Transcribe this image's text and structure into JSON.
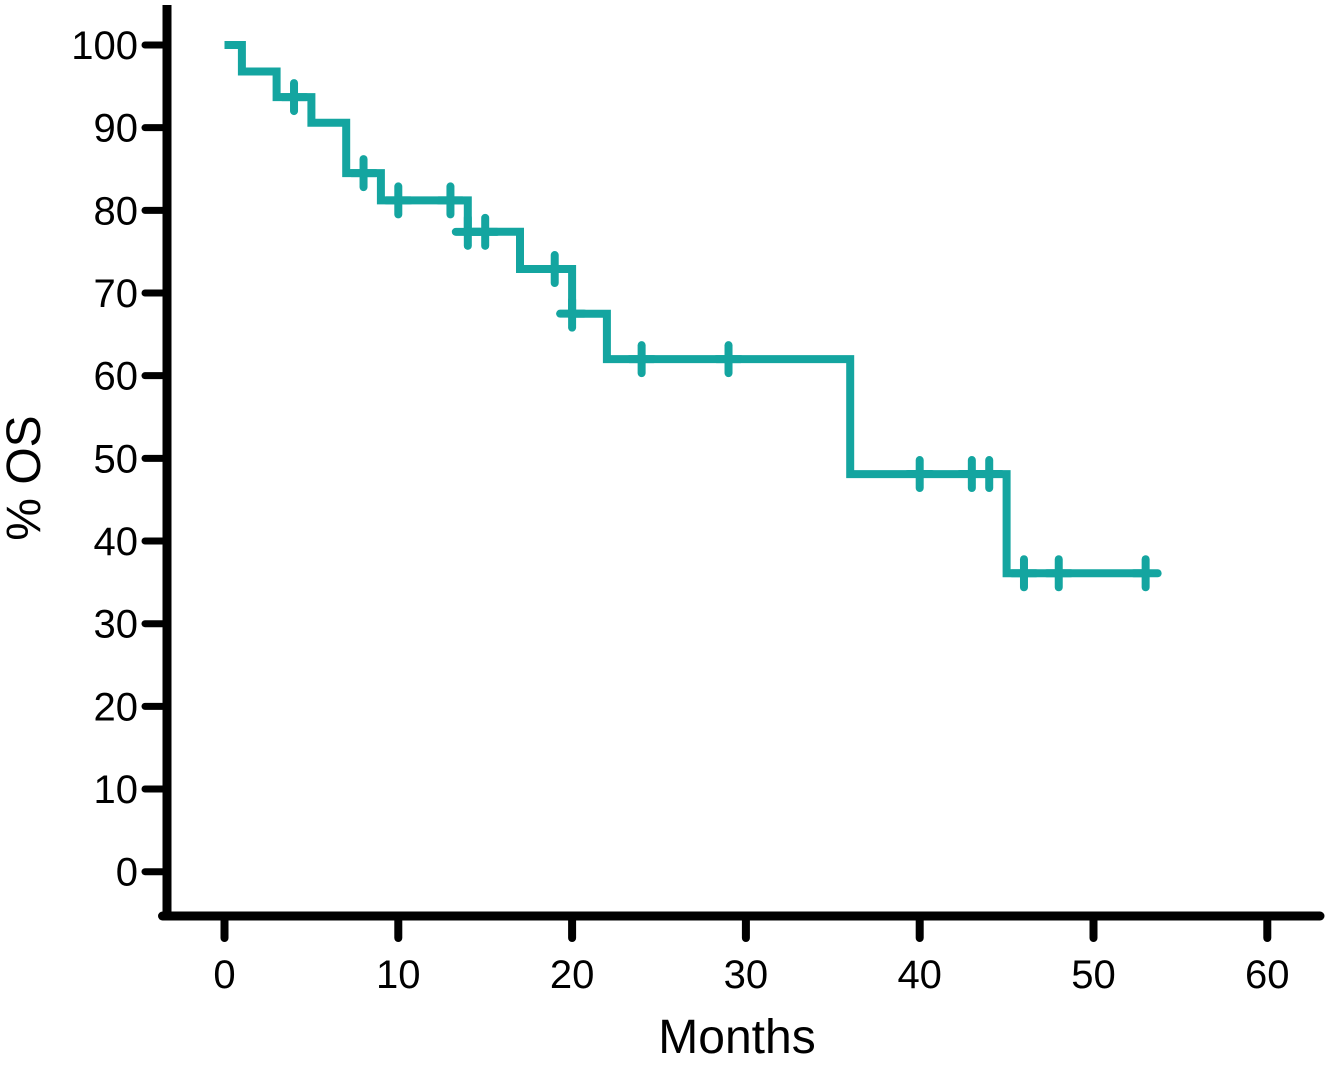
{
  "chart_data": {
    "type": "line",
    "chart_kind": "kaplan-meier-survival-step-curve",
    "title": "",
    "xlabel": "Months",
    "ylabel": "% OS",
    "xlim": [
      0,
      60
    ],
    "ylim": [
      0,
      100
    ],
    "x_ticks": [
      0,
      10,
      20,
      30,
      40,
      50,
      60
    ],
    "y_ticks": [
      0,
      10,
      20,
      30,
      40,
      50,
      60,
      70,
      80,
      90,
      100
    ],
    "grid": false,
    "legend_position": "none",
    "colors": {
      "curve": "#14A5A0",
      "axis": "#000000",
      "text": "#000000",
      "background": "#FFFFFF"
    },
    "series": [
      {
        "name": "% OS",
        "steps_time_percent": [
          [
            0,
            100
          ],
          [
            1,
            96.8
          ],
          [
            3,
            93.7
          ],
          [
            5,
            90.6
          ],
          [
            7,
            84.5
          ],
          [
            9,
            81.2
          ],
          [
            14,
            77.4
          ],
          [
            17,
            72.9
          ],
          [
            20,
            67.5
          ],
          [
            22,
            62.0
          ],
          [
            36,
            48.1
          ],
          [
            45,
            36.1
          ]
        ],
        "end_time": 53,
        "censor_marks_time_percent": [
          [
            4,
            93.7
          ],
          [
            8,
            84.5
          ],
          [
            10,
            81.2
          ],
          [
            13,
            81.2
          ],
          [
            14,
            77.4
          ],
          [
            15,
            77.4
          ],
          [
            19,
            72.9
          ],
          [
            20,
            67.5
          ],
          [
            24,
            62.0
          ],
          [
            29,
            62.0
          ],
          [
            40,
            48.1
          ],
          [
            43,
            48.1
          ],
          [
            44,
            48.1
          ],
          [
            46,
            36.1
          ],
          [
            48,
            36.1
          ],
          [
            53,
            36.1
          ]
        ]
      }
    ]
  }
}
